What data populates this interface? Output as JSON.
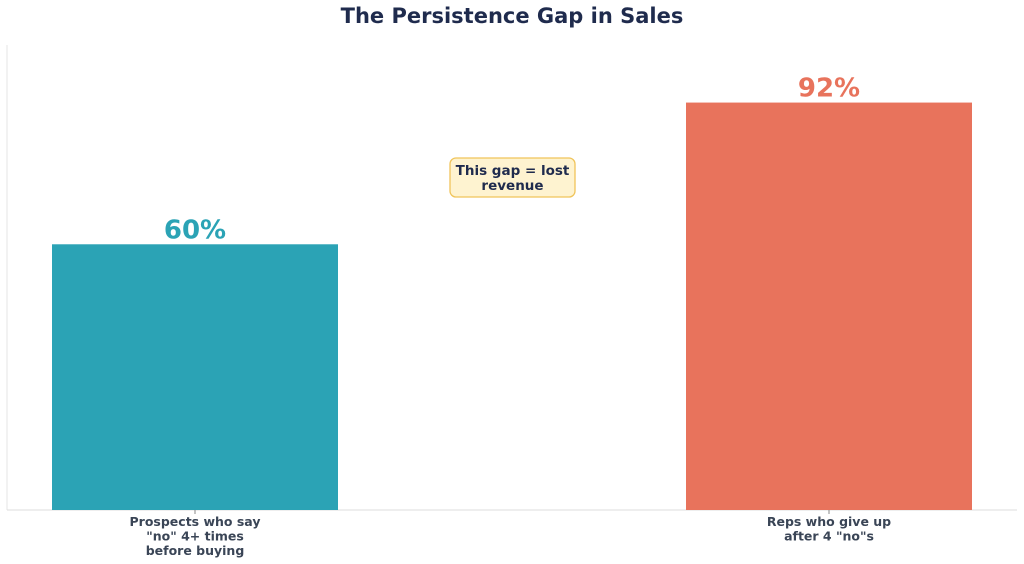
{
  "chart_data": {
    "type": "bar",
    "title": "The Persistence Gap in Sales",
    "xlabel": "",
    "ylabel": "",
    "ylim": [
      0,
      105
    ],
    "grid": false,
    "categories": [
      [
        "Prospects who say",
        "\"no\" 4+ times",
        "before buying"
      ],
      [
        "Reps who give up",
        "after 4 \"no\"s"
      ]
    ],
    "values": [
      60,
      92
    ],
    "value_labels": [
      "60%",
      "92%"
    ],
    "colors": [
      "#2ba3b5",
      "#e8735c"
    ],
    "annotation": {
      "lines": [
        "This gap = lost",
        "revenue"
      ],
      "fill": "#fef3d0",
      "border": "#f0c45a"
    }
  }
}
